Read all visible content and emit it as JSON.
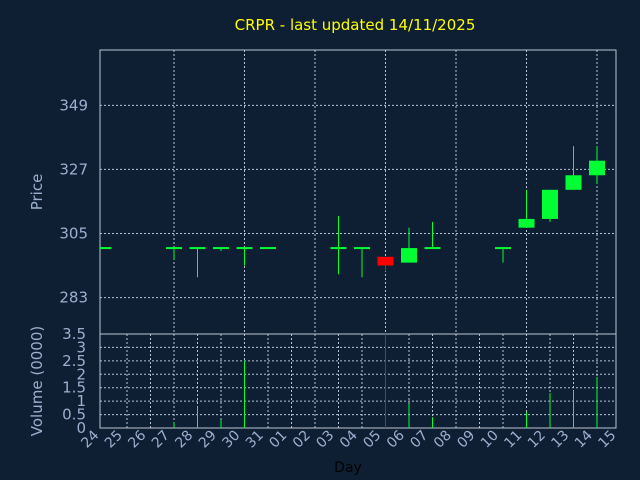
{
  "chart_data": {
    "type": "candlestick",
    "title": "CRPR - last updated 14/11/2025",
    "xlabel": "Day",
    "ylabel_price": "Price",
    "ylabel_volume": "Volume (0000)",
    "x_ticks": [
      "24",
      "25",
      "26",
      "27",
      "28",
      "29",
      "30",
      "31",
      "01",
      "02",
      "03",
      "04",
      "05",
      "06",
      "07",
      "08",
      "09",
      "10",
      "11",
      "12",
      "13",
      "14",
      "15"
    ],
    "price_ticks": [
      283,
      305,
      327,
      349
    ],
    "price_range": [
      270.5,
      368
    ],
    "volume_ticks": [
      "0",
      "0.5",
      "1",
      "1.5",
      "2",
      "2.5",
      "3",
      "3.5"
    ],
    "volume_range": [
      0,
      3.5
    ],
    "grid": true,
    "colors": {
      "up": "#00ff33",
      "down": "#ff0000",
      "neutral": "#00ff33"
    },
    "candles": [
      {
        "day": "24",
        "open": 300,
        "high": 300,
        "low": 300,
        "close": 300
      },
      {
        "day": "27",
        "open": 300,
        "high": 300,
        "low": 296,
        "close": 300
      },
      {
        "day": "28",
        "open": 300,
        "high": 300,
        "low": 290,
        "close": 300
      },
      {
        "day": "29",
        "open": 300,
        "high": 300,
        "low": 299,
        "close": 300
      },
      {
        "day": "30",
        "open": 300,
        "high": 300,
        "low": 294,
        "close": 300
      },
      {
        "day": "31",
        "open": 300,
        "high": 300,
        "low": 300,
        "close": 300
      },
      {
        "day": "03",
        "open": 300,
        "high": 311,
        "low": 291,
        "close": 300
      },
      {
        "day": "04",
        "open": 300,
        "high": 300,
        "low": 290,
        "close": 300
      },
      {
        "day": "05",
        "open": 297,
        "high": 297,
        "low": 292,
        "close": 294
      },
      {
        "day": "06",
        "open": 295,
        "high": 307,
        "low": 295,
        "close": 300
      },
      {
        "day": "07",
        "open": 300,
        "high": 309,
        "low": 300,
        "close": 300
      },
      {
        "day": "10",
        "open": 300,
        "high": 300,
        "low": 295,
        "close": 300
      },
      {
        "day": "11",
        "open": 307,
        "high": 320,
        "low": 307,
        "close": 310
      },
      {
        "day": "12",
        "open": 310,
        "high": 320,
        "low": 309,
        "close": 320
      },
      {
        "day": "13",
        "open": 320,
        "high": 335,
        "low": 320,
        "close": 325
      },
      {
        "day": "14",
        "open": 325,
        "high": 335,
        "low": 322,
        "close": 330
      }
    ],
    "volumes": [
      {
        "day": "27",
        "value": 0.2,
        "color": "#00ff33"
      },
      {
        "day": "28",
        "value": 0.8,
        "color": "#00ff33"
      },
      {
        "day": "29",
        "value": 0.3,
        "color": "#00ff33"
      },
      {
        "day": "30",
        "value": 2.5,
        "color": "#00ff33"
      },
      {
        "day": "05",
        "value": 3.5,
        "color": "#ff0000"
      },
      {
        "day": "06",
        "value": 0.9,
        "color": "#00ff33"
      },
      {
        "day": "07",
        "value": 0.4,
        "color": "#00ff33"
      },
      {
        "day": "11",
        "value": 0.6,
        "color": "#00ff33"
      },
      {
        "day": "12",
        "value": 1.3,
        "color": "#00ff33"
      },
      {
        "day": "13",
        "value": 1.4,
        "color": "#00ff33"
      },
      {
        "day": "14",
        "value": 1.9,
        "color": "#00ff33"
      }
    ]
  }
}
